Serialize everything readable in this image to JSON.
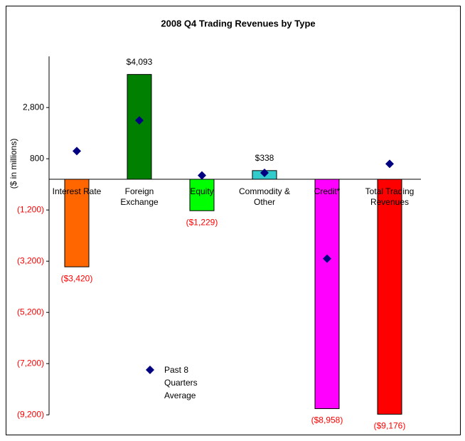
{
  "chart_data": {
    "type": "bar",
    "title": "2008 Q4 Trading Revenues by Type",
    "y_label": "($ in millions)",
    "categories": [
      "Interest Rate",
      "Foreign Exchange",
      "Equity",
      "Commodity & Other",
      "Credit*",
      "Total Trading Revenues"
    ],
    "values": [
      -3420,
      4093,
      -1229,
      338,
      -8958,
      -9176
    ],
    "value_labels": [
      "($3,420)",
      "$4,093",
      "($1,229)",
      "$338",
      "($8,958)",
      "($9,176)"
    ],
    "colors": [
      "#ff6600",
      "#008000",
      "#00ff00",
      "#33cccc",
      "#ff00ff",
      "#ff0000"
    ],
    "negative_color": "#ff0000",
    "series": [
      {
        "name": "Past 8 Quarters Average",
        "color": "#000080",
        "marker": "diamond",
        "values": [
          1100,
          2300,
          150,
          250,
          -3100,
          600
        ]
      }
    ],
    "ylim": [
      -9200,
      4800
    ],
    "yticks": [
      {
        "value": -9200,
        "label": "(9,200)"
      },
      {
        "value": -7200,
        "label": "(7,200)"
      },
      {
        "value": -5200,
        "label": "(5,200)"
      },
      {
        "value": -3200,
        "label": "(3,200)"
      },
      {
        "value": -1200,
        "label": "(1,200)"
      },
      {
        "value": 800,
        "label": "800"
      },
      {
        "value": 2800,
        "label": "2,800"
      }
    ],
    "grid": false
  }
}
